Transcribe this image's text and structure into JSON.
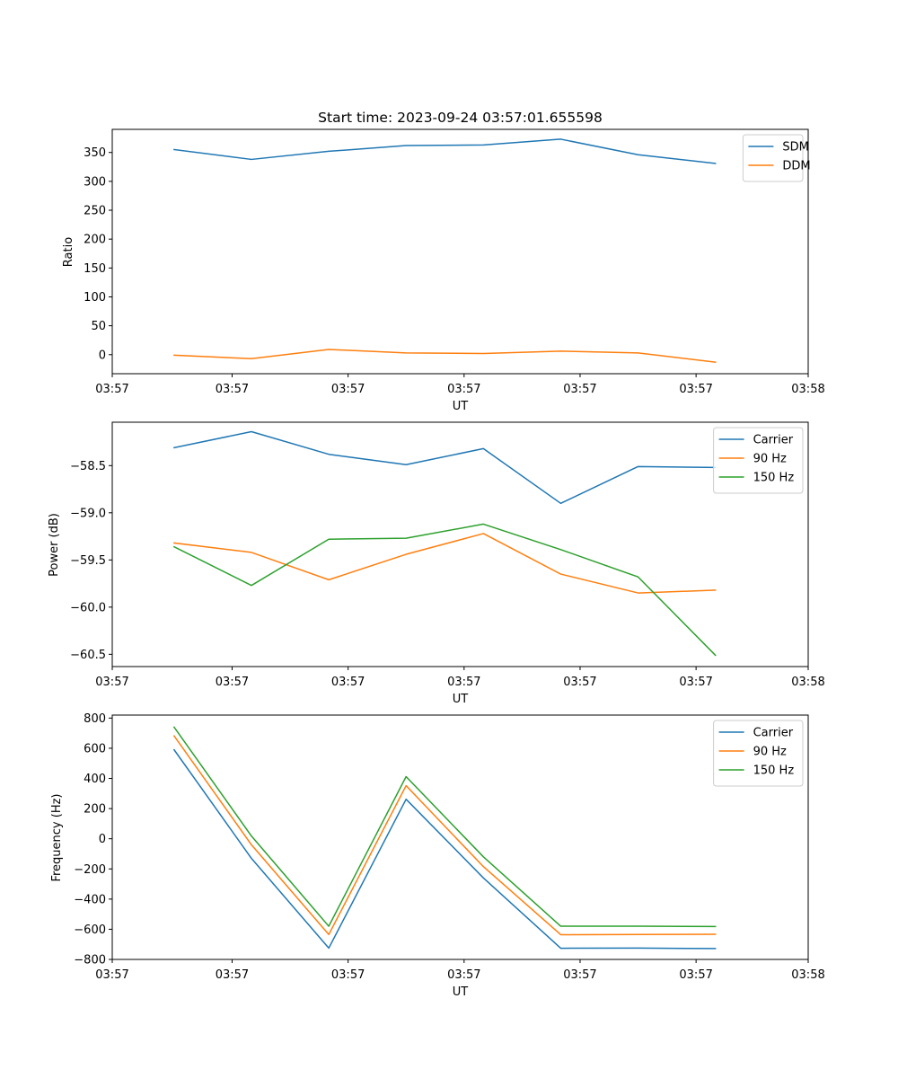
{
  "chart_data": [
    {
      "type": "line",
      "title": "Start time: 2023-09-24 03:57:01.655598",
      "xlabel": "UT",
      "ylabel": "Ratio",
      "x": [
        1,
        2,
        3,
        4,
        5,
        6,
        7,
        8
      ],
      "xlim": [
        0.2,
        9.2
      ],
      "xticks": [
        0.2,
        1.75,
        3.25,
        4.75,
        6.25,
        7.75,
        9.2
      ],
      "xtick_labels": [
        "03:57",
        "03:57",
        "03:57",
        "03:57",
        "03:57",
        "03:57",
        "03:58"
      ],
      "ylim": [
        -33,
        390
      ],
      "yticks": [
        0,
        50,
        100,
        150,
        200,
        250,
        300,
        350
      ],
      "ytick_labels": [
        "0",
        "50",
        "100",
        "150",
        "200",
        "250",
        "300",
        "350"
      ],
      "legend_position": "top-right",
      "series": [
        {
          "name": "SDM",
          "color": "#1f77b4",
          "values": [
            355,
            338,
            352,
            362,
            363,
            373,
            346,
            331
          ]
        },
        {
          "name": "DDM",
          "color": "#ff7f0e",
          "values": [
            -1,
            -7,
            9,
            3,
            2,
            6,
            3,
            -13
          ]
        }
      ]
    },
    {
      "type": "line",
      "title": "",
      "xlabel": "UT",
      "ylabel": "Power (dB)",
      "x": [
        1,
        2,
        3,
        4,
        5,
        6,
        7,
        8
      ],
      "xlim": [
        0.2,
        9.2
      ],
      "xticks": [
        0.2,
        1.75,
        3.25,
        4.75,
        6.25,
        7.75,
        9.2
      ],
      "xtick_labels": [
        "03:57",
        "03:57",
        "03:57",
        "03:57",
        "03:57",
        "03:57",
        "03:58"
      ],
      "ylim": [
        -60.63,
        -58.04
      ],
      "yticks": [
        -58.5,
        -59.0,
        -59.5,
        -60.0,
        -60.5
      ],
      "ytick_labels": [
        "−58.5",
        "−59.0",
        "−59.5",
        "−60.0",
        "−60.5"
      ],
      "legend_position": "top-right",
      "series": [
        {
          "name": "Carrier",
          "color": "#1f77b4",
          "values": [
            -58.31,
            -58.14,
            -58.38,
            -58.49,
            -58.32,
            -58.9,
            -58.51,
            -58.52
          ]
        },
        {
          "name": "90 Hz",
          "color": "#ff7f0e",
          "values": [
            -59.32,
            -59.42,
            -59.71,
            -59.44,
            -59.22,
            -59.65,
            -59.85,
            -59.82
          ]
        },
        {
          "name": "150 Hz",
          "color": "#2ca02c",
          "values": [
            -59.36,
            -59.77,
            -59.28,
            -59.27,
            -59.12,
            -59.39,
            -59.68,
            -60.51
          ]
        }
      ]
    },
    {
      "type": "line",
      "title": "",
      "xlabel": "UT",
      "ylabel": "Frequency (Hz)",
      "x": [
        1,
        2,
        3,
        4,
        5,
        6,
        7,
        8
      ],
      "xlim": [
        0.2,
        9.2
      ],
      "xticks": [
        0.2,
        1.75,
        3.25,
        4.75,
        6.25,
        7.75,
        9.2
      ],
      "xtick_labels": [
        "03:57",
        "03:57",
        "03:57",
        "03:57",
        "03:57",
        "03:57",
        "03:58"
      ],
      "ylim": [
        -800,
        820
      ],
      "yticks": [
        800,
        600,
        400,
        200,
        0,
        -200,
        -400,
        -600,
        -800
      ],
      "ytick_labels": [
        "800",
        "600",
        "400",
        "200",
        "0",
        "−200",
        "−400",
        "−600",
        "−800"
      ],
      "legend_position": "top-right",
      "series": [
        {
          "name": "Carrier",
          "color": "#1f77b4",
          "values": [
            590,
            -130,
            -725,
            262,
            -260,
            -726,
            -725,
            -728
          ]
        },
        {
          "name": "90 Hz",
          "color": "#ff7f0e",
          "values": [
            682,
            -40,
            -635,
            352,
            -185,
            -636,
            -635,
            -633
          ]
        },
        {
          "name": "150 Hz",
          "color": "#2ca02c",
          "values": [
            740,
            18,
            -580,
            412,
            -120,
            -580,
            -580,
            -582
          ]
        }
      ]
    }
  ]
}
